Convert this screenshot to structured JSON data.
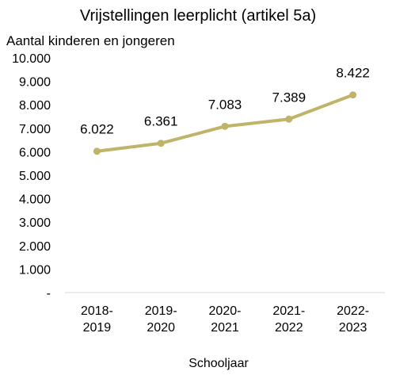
{
  "chart_data": {
    "type": "line",
    "title": "Vrijstellingen leerplicht (artikel 5a)",
    "ylabel": "Aantal kinderen en jongeren",
    "xlabel": "Schooljaar",
    "categories": [
      [
        "2018-",
        "2019"
      ],
      [
        "2019-",
        "2020"
      ],
      [
        "2020-",
        "2021"
      ],
      [
        "2021-",
        "2022"
      ],
      [
        "2022-",
        "2023"
      ]
    ],
    "series": [
      {
        "values": [
          6022,
          6361,
          7083,
          7389,
          8422
        ],
        "data_labels": [
          "6.022",
          "6.361",
          "7.083",
          "7.389",
          "8.422"
        ],
        "color": "#BFB46A"
      }
    ],
    "ylim": [
      0,
      10000
    ],
    "yticks": [
      0,
      1000,
      2000,
      3000,
      4000,
      5000,
      6000,
      7000,
      8000,
      9000,
      10000
    ],
    "ytick_labels": [
      "-",
      "1.000",
      "2.000",
      "3.000",
      "4.000",
      "5.000",
      "6.000",
      "7.000",
      "8.000",
      "9.000",
      "10.000"
    ],
    "grid": false,
    "legend": "none"
  }
}
